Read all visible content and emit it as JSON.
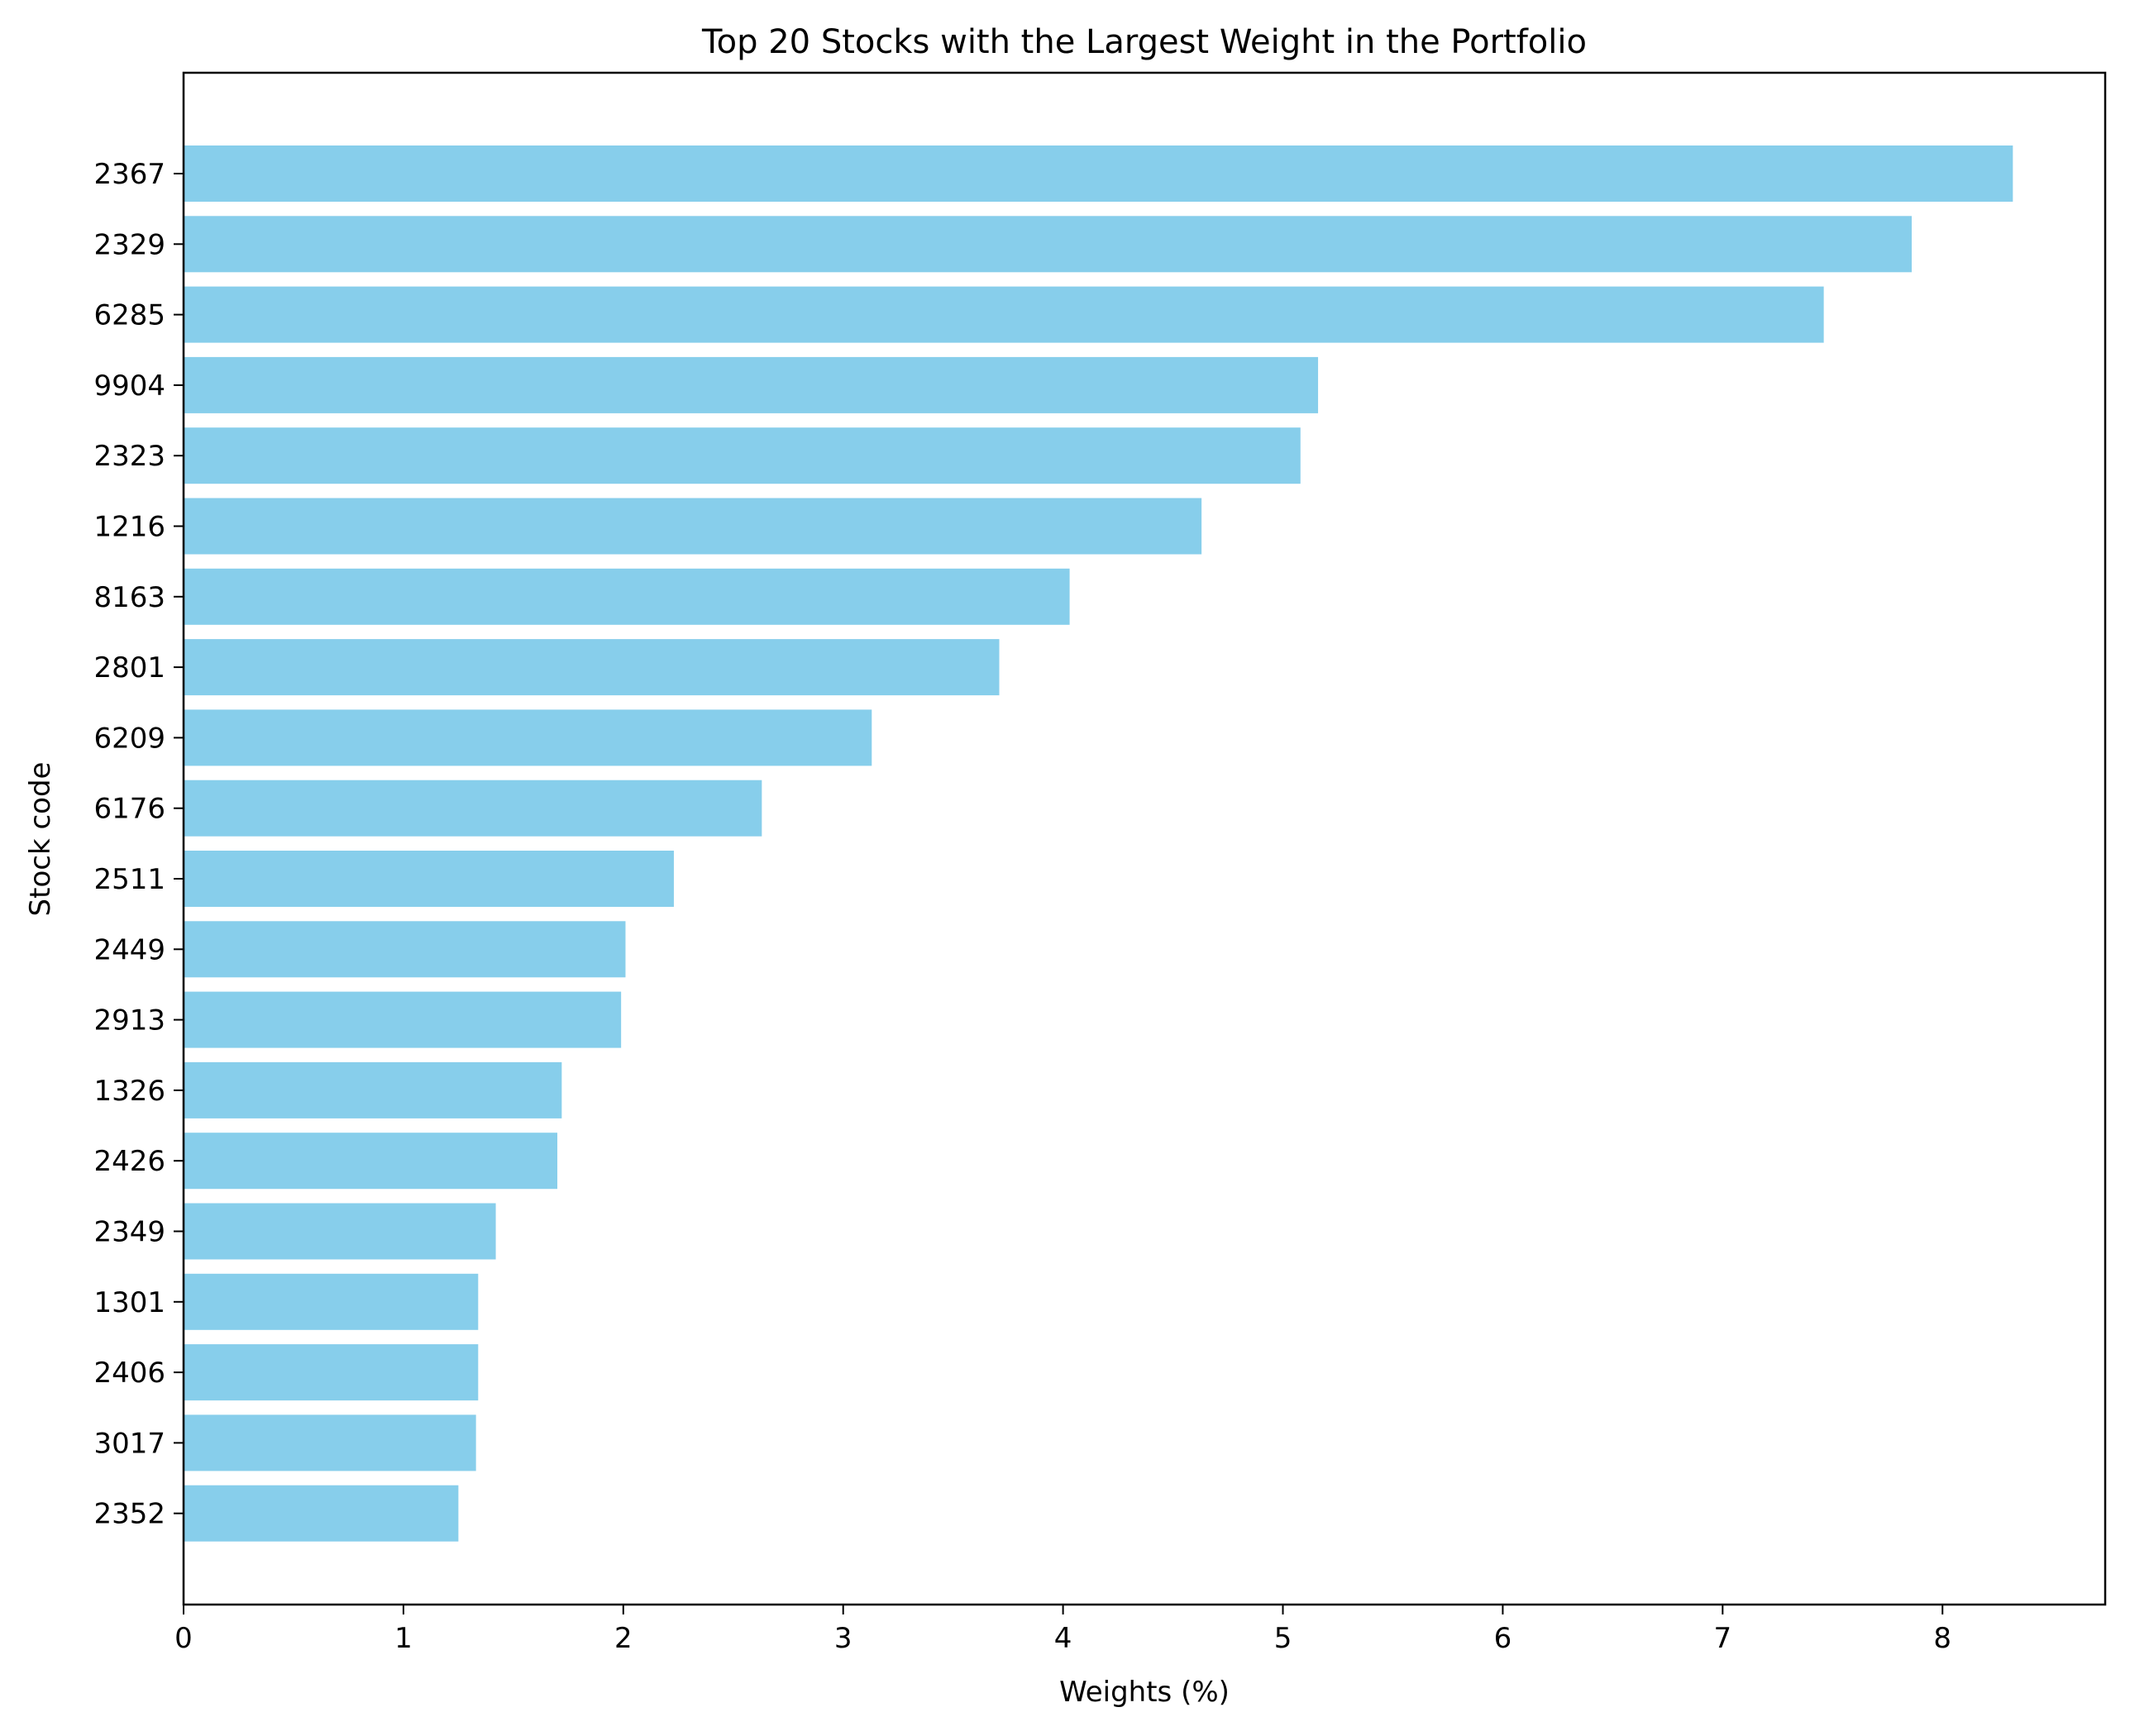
{
  "chart_data": {
    "type": "bar",
    "orientation": "horizontal",
    "title": "Top 20 Stocks with the Largest Weight in the Portfolio",
    "xlabel": "Weights (%)",
    "ylabel": "Stock code",
    "categories": [
      "2367",
      "2329",
      "6285",
      "9904",
      "2323",
      "1216",
      "8163",
      "2801",
      "6209",
      "6176",
      "2511",
      "2449",
      "2913",
      "1326",
      "2426",
      "2349",
      "1301",
      "2406",
      "3017",
      "2352"
    ],
    "values": [
      8.32,
      7.86,
      7.46,
      5.16,
      5.08,
      4.63,
      4.03,
      3.71,
      3.13,
      2.63,
      2.23,
      2.01,
      1.99,
      1.72,
      1.7,
      1.42,
      1.34,
      1.34,
      1.33,
      1.25
    ],
    "xlim": [
      0,
      8.74
    ],
    "xticks": [
      "0",
      "1",
      "2",
      "3",
      "4",
      "5",
      "6",
      "7",
      "8"
    ],
    "grid": false,
    "legend": false,
    "bar_color": "#87CEEB"
  }
}
